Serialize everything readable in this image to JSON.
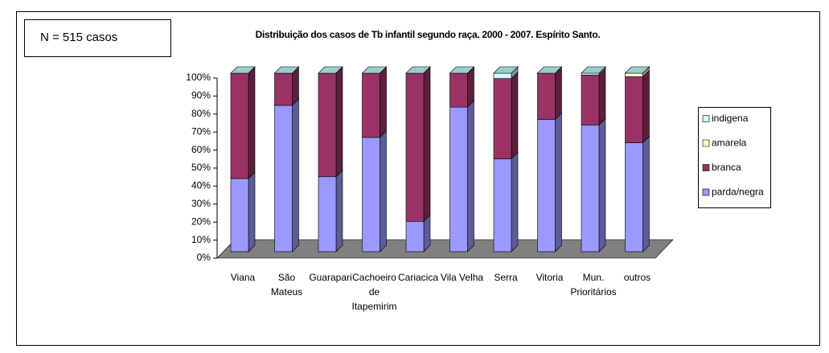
{
  "chart_data": {
    "type": "bar",
    "title": "Distribuição dos casos de Tb infantil segundo raça. 2000 - 2007. Espírito Santo.",
    "note": "N = 515 casos",
    "categories": [
      "Viana",
      "São\nMateus",
      "Guarapari",
      "Cachoeiro\nde\nItapemirim",
      "Cariacica",
      "Vila Velha",
      "Serra",
      "Vitoria",
      "Mun.\nPrioritários",
      "outros"
    ],
    "stacked": true,
    "series": [
      {
        "name": "parda/negra",
        "color": "#9999ff",
        "values": [
          41,
          82,
          42,
          64,
          17,
          81,
          52,
          74,
          71,
          61
        ]
      },
      {
        "name": "branca",
        "color": "#993366",
        "values": [
          59,
          18,
          58,
          36,
          83,
          19,
          45,
          26,
          28,
          37
        ]
      },
      {
        "name": "amarela",
        "color": "#ffffcc",
        "values": [
          0,
          0,
          0,
          0,
          0,
          0,
          0,
          0,
          0,
          2
        ]
      },
      {
        "name": "indigena",
        "color": "#ccffff",
        "values": [
          0,
          0,
          0,
          0,
          0,
          0,
          3,
          0,
          1,
          0
        ]
      }
    ],
    "ylim": [
      0,
      100
    ],
    "yticks": [
      {
        "value": 0,
        "label": "0%"
      },
      {
        "value": 10,
        "label": "10%"
      },
      {
        "value": 20,
        "label": "20%"
      },
      {
        "value": 30,
        "label": "30%"
      },
      {
        "value": 40,
        "label": "40%"
      },
      {
        "value": 50,
        "label": "50%"
      },
      {
        "value": 60,
        "label": "60%"
      },
      {
        "value": 70,
        "label": "70%"
      },
      {
        "value": 80,
        "label": "80%"
      },
      {
        "value": 90,
        "label": "90%"
      },
      {
        "value": 100,
        "label": "100%"
      }
    ],
    "floor_color": "#808080"
  }
}
